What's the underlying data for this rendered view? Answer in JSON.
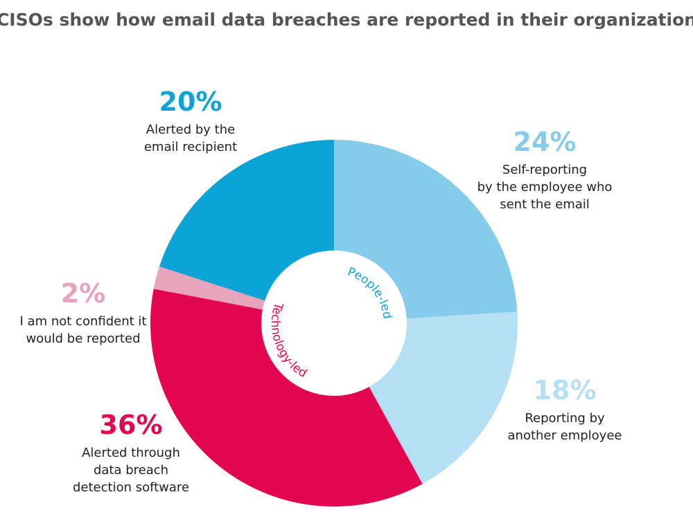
{
  "chart_data": {
    "type": "donut",
    "title": "CISOs show how email data breaches are reported in their organization",
    "categories": [
      [
        "Self-reporting",
        "by the employee who",
        "sent the email"
      ],
      [
        "Reporting by",
        "another employee"
      ],
      [
        "Alerted through",
        "data breach",
        "detection software"
      ],
      [
        "I am not confident it",
        "would be reported"
      ],
      [
        "Alerted by the",
        "email recipient"
      ]
    ],
    "values": [
      24,
      18,
      36,
      2,
      20
    ],
    "value_labels": [
      "24%",
      "18%",
      "36%",
      "2%",
      "20%"
    ],
    "colors": [
      "#85cbea",
      "#b5dff2",
      "#e3064f",
      "#e8a4bc",
      "#0ca3d6"
    ],
    "center_labels": [
      "People-led",
      "Technology-led"
    ]
  }
}
